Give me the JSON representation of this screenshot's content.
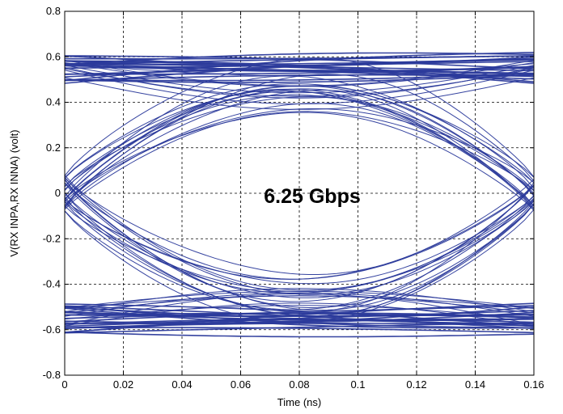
{
  "chart_data": {
    "type": "line",
    "subtype": "eye-diagram",
    "title": "",
    "xlabel": "Time (ns)",
    "ylabel": "V(RX INPA,RX INNA) (volt)",
    "xlim": [
      0,
      0.16
    ],
    "ylim": [
      -0.8,
      0.8
    ],
    "xticks": [
      0,
      0.02,
      0.04,
      0.06,
      0.08,
      0.1,
      0.12,
      0.14,
      0.16
    ],
    "yticks": [
      -0.8,
      -0.6,
      -0.4,
      -0.2,
      0,
      0.2,
      0.4,
      0.6,
      0.8
    ],
    "xtick_labels": [
      "0",
      "0.02",
      "0.04",
      "0.06",
      "0.08",
      "0.1",
      "0.12",
      "0.14",
      "0.16"
    ],
    "ytick_labels": [
      "-0.8",
      "-0.6",
      "-0.4",
      "-0.2",
      "0",
      "0.2",
      "0.4",
      "0.6",
      "0.8"
    ],
    "grid": "dashed",
    "annotation": "6.25 Gbps",
    "trace_color": "#2b3a9b",
    "eye": {
      "unit_interval_ns": 0.16,
      "crossing_time_ns": [
        0,
        0.16
      ],
      "high_level_v": [
        0.48,
        0.62
      ],
      "low_level_v": [
        -0.62,
        -0.48
      ],
      "eye_peak_time_ns": 0.085,
      "inner_eye_opening_v": [
        -0.36,
        0.36
      ]
    }
  }
}
